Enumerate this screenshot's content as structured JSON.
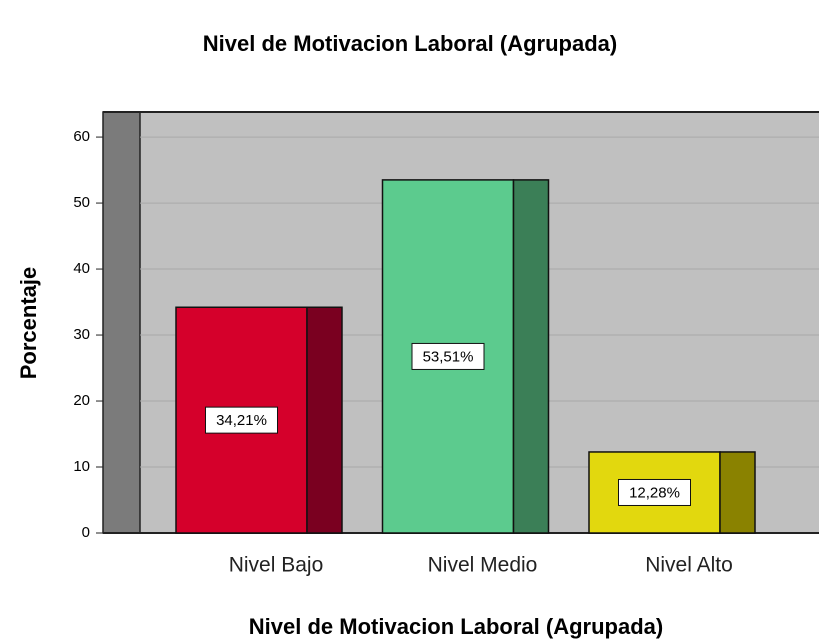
{
  "chart_data": {
    "type": "bar",
    "title": "Nivel de Motivacion Laboral (Agrupada)",
    "x_label": "Nivel de Motivacion Laboral (Agrupada)",
    "y_label": "Porcentaje",
    "categories": [
      "Nivel Bajo",
      "Nivel Medio",
      "Nivel Alto"
    ],
    "values": [
      34.21,
      53.51,
      12.28
    ],
    "value_labels": [
      "34,21%",
      "53,51%",
      "12,28%"
    ],
    "colors": [
      "#d5002b",
      "#5ccb8e",
      "#e2d80e"
    ],
    "side_colors": [
      "#7a0020",
      "#3b7f57",
      "#8a8200"
    ],
    "ylim": [
      0,
      63.8
    ],
    "yticks": [
      0,
      10,
      20,
      30,
      40,
      50,
      60
    ],
    "grid": true
  }
}
